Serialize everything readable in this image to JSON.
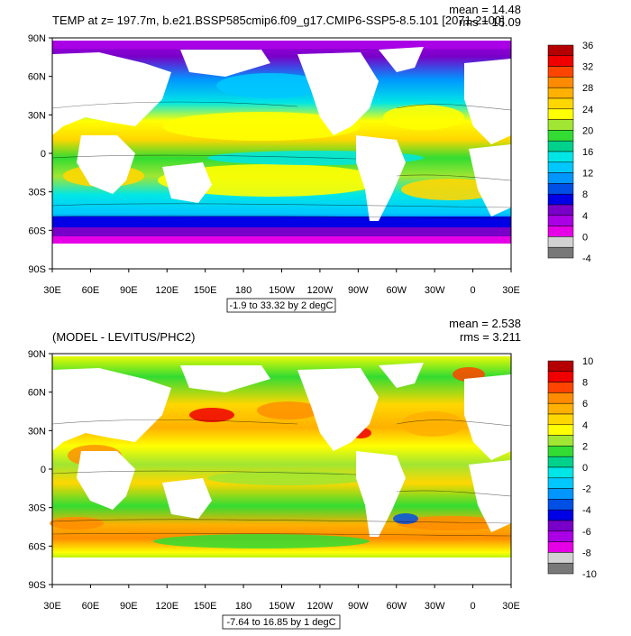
{
  "panels": [
    {
      "id": "top",
      "title": "TEMP at z= 197.7m, b.e21.BSSP585cmip6.f09_g17.CMIP6-SSP5-8.5.101 [2071-2100]",
      "stats": [
        "mean = 14.48",
        "rms = 15.09"
      ],
      "contour_info": "-1.9 to 33.32 by 2 degC",
      "lat_ticks": [
        "90N",
        "60N",
        "30N",
        "0",
        "30S",
        "60S",
        "90S"
      ],
      "lon_ticks": [
        "30E",
        "60E",
        "90E",
        "120E",
        "150E",
        "180",
        "150W",
        "120W",
        "90W",
        "60W",
        "30W",
        "0",
        "30E"
      ],
      "colorbar": {
        "labels": [
          "36",
          "32",
          "28",
          "24",
          "20",
          "16",
          "12",
          "8",
          "4",
          "0",
          "-4"
        ],
        "colors": [
          "#b40000",
          "#f00000",
          "#ff4400",
          "#ff8c00",
          "#ffb000",
          "#ffd700",
          "#ffff00",
          "#a0e632",
          "#32dc32",
          "#00d28c",
          "#00e6e6",
          "#00c8ff",
          "#0096ff",
          "#0050e6",
          "#0000e6",
          "#7800c8",
          "#aa00e6",
          "#e600e6",
          "#d2d2d2",
          "#787878"
        ]
      }
    },
    {
      "id": "bottom",
      "title": "(MODEL - LEVITUS/PHC2)",
      "stats": [
        "mean = 2.538",
        "rms = 3.211"
      ],
      "contour_info": "-7.64 to 16.85 by 1 degC",
      "lat_ticks": [
        "90N",
        "60N",
        "30N",
        "0",
        "30S",
        "60S",
        "90S"
      ],
      "lon_ticks": [
        "30E",
        "60E",
        "90E",
        "120E",
        "150E",
        "180",
        "150W",
        "120W",
        "90W",
        "60W",
        "30W",
        "0",
        "30E"
      ],
      "colorbar": {
        "labels": [
          "10",
          "8",
          "6",
          "4",
          "2",
          "0",
          "-2",
          "-4",
          "-6",
          "-8",
          "-10"
        ],
        "colors": [
          "#b40000",
          "#f00000",
          "#ff4400",
          "#ff8c00",
          "#ffb000",
          "#ffd700",
          "#ffff00",
          "#a0e632",
          "#32dc32",
          "#00d28c",
          "#00e6e6",
          "#00c8ff",
          "#0096ff",
          "#0050e6",
          "#0000e6",
          "#7800c8",
          "#aa00e6",
          "#e600e6",
          "#d2d2d2",
          "#787878"
        ]
      }
    }
  ]
}
